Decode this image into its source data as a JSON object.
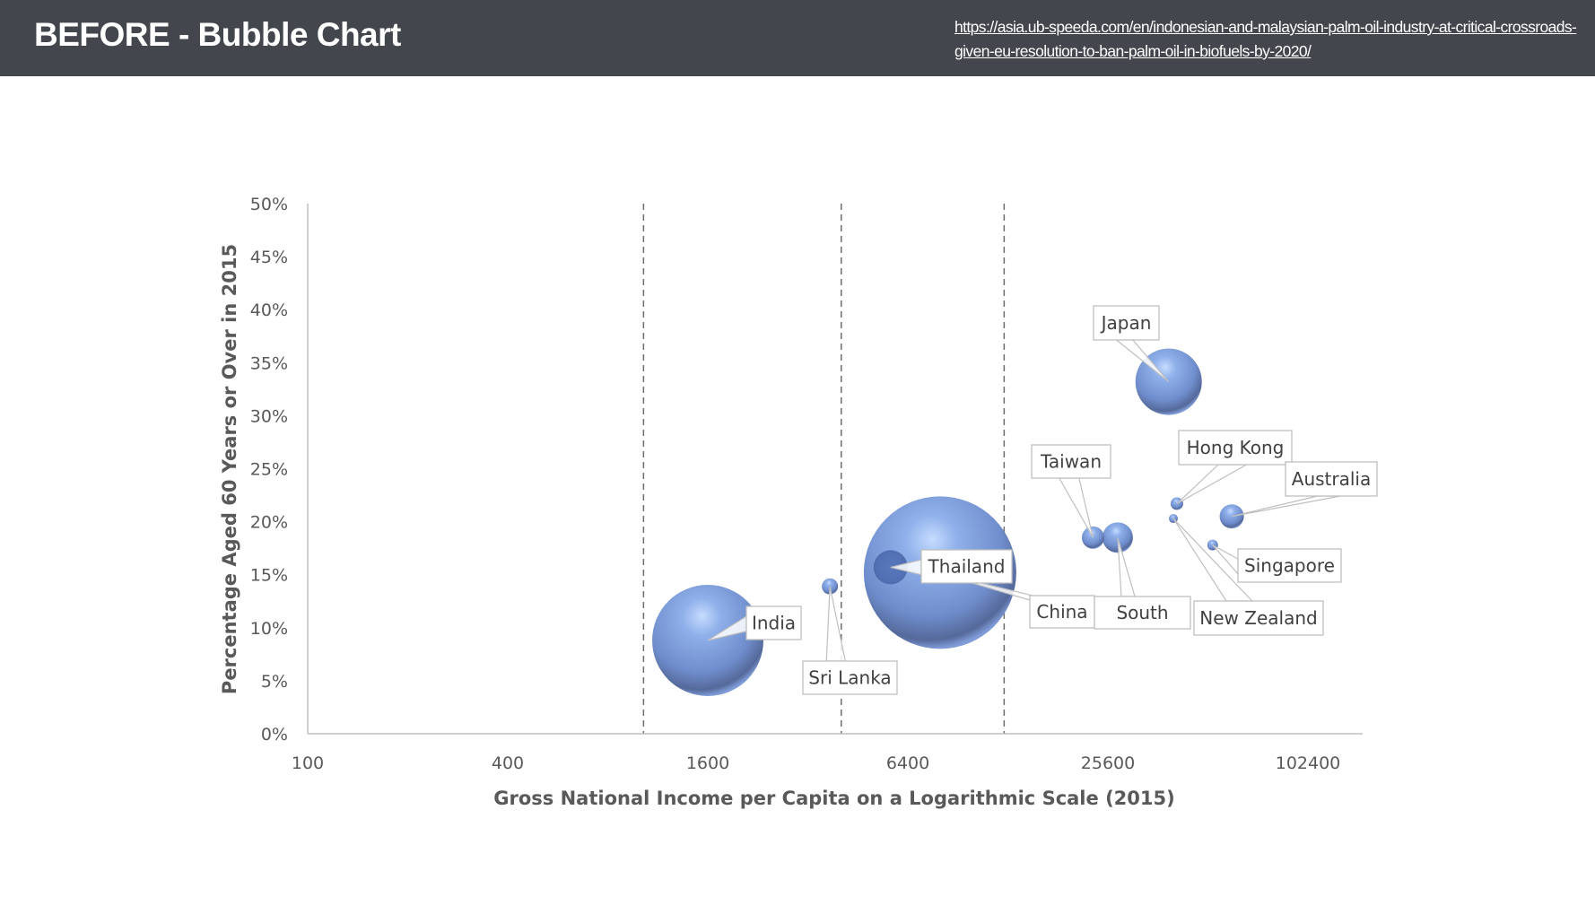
{
  "header": {
    "title": "BEFORE - Bubble Chart",
    "source_link": "https://asia.ub-speeda.com/en/indonesian-and-malaysian-palm-oil-industry-at-critical-crossroads-given-eu-resolution-to-ban-palm-oil-in-biofuels-by-2020/"
  },
  "colors": {
    "header_bg": "#43464d",
    "bubble": "#6d8bc9",
    "bubble_dark": "#3f5a99",
    "axis": "#bfbfbf",
    "tick_text": "#595959"
  },
  "chart_data": {
    "type": "bubble",
    "title": "",
    "xlabel": "Gross National Income per Capita on a Logarithmic Scale (2015)",
    "ylabel": "Percentage Aged 60 Years or Over in 2015",
    "x_scale": "log2",
    "xlim": [
      100,
      102400
    ],
    "ylim": [
      0,
      50
    ],
    "x_ticks": [
      "100",
      "400",
      "1600",
      "6400",
      "25600",
      "102400"
    ],
    "x_tick_values": [
      100,
      400,
      1600,
      6400,
      25600,
      102400
    ],
    "y_ticks": [
      "0%",
      "5%",
      "10%",
      "15%",
      "20%",
      "25%",
      "30%",
      "35%",
      "40%",
      "45%",
      "50%"
    ],
    "y_tick_values": [
      0,
      5,
      10,
      15,
      20,
      25,
      30,
      35,
      40,
      45,
      50
    ],
    "reference_lines_x": [
      1025,
      4035,
      12475
    ],
    "grid": false,
    "legend": "none",
    "series": [
      {
        "name": "India",
        "x": 1600,
        "y": 8.8,
        "size": 62
      },
      {
        "name": "Sri Lanka",
        "x": 3730,
        "y": 13.9,
        "size": 9
      },
      {
        "name": "Thailand",
        "x": 5680,
        "y": 15.7,
        "size": 19
      },
      {
        "name": "China",
        "x": 8000,
        "y": 15.2,
        "size": 85
      },
      {
        "name": "Taiwan",
        "x": 23100,
        "y": 18.5,
        "size": 12.5
      },
      {
        "name": "South",
        "x": 27400,
        "y": 18.5,
        "size": 17
      },
      {
        "name": "Japan",
        "x": 39000,
        "y": 33.2,
        "size": 37
      },
      {
        "name": "Hong Kong",
        "x": 41300,
        "y": 21.7,
        "size": 7
      },
      {
        "name": "New Zealand",
        "x": 40300,
        "y": 20.3,
        "size": 5
      },
      {
        "name": "Australia",
        "x": 60400,
        "y": 20.5,
        "size": 13.5
      },
      {
        "name": "Singapore",
        "x": 52900,
        "y": 17.8,
        "size": 6
      }
    ]
  }
}
